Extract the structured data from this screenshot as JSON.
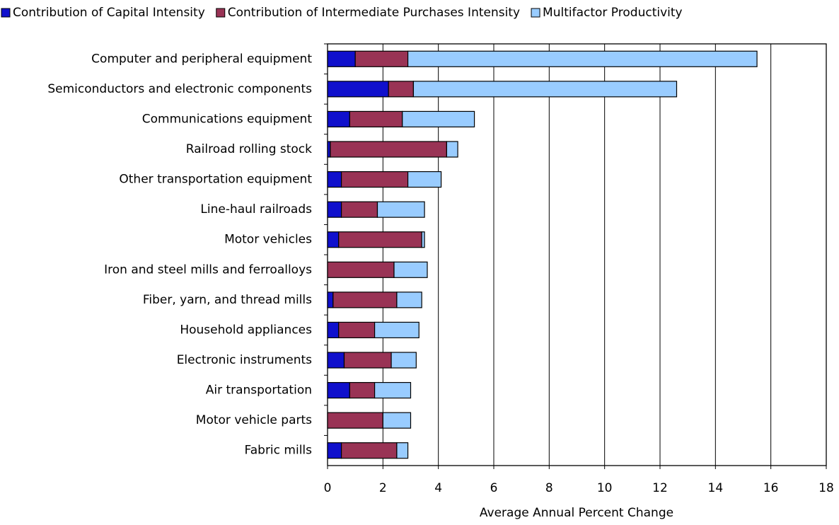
{
  "chart_data": {
    "type": "stacked-bar-horizontal",
    "x_label": "Average Annual Percent Change",
    "categories": [
      "Computer and peripheral equipment",
      "Semiconductors and electronic components",
      "Communications equipment",
      "Railroad rolling stock",
      "Other transportation equipment",
      "Line-haul railroads",
      "Motor vehicles",
      "Iron and steel mills and ferroalloys",
      "Fiber, yarn, and thread mills",
      "Household appliances",
      "Electronic instruments",
      "Air transportation",
      "Motor vehicle parts",
      "Fabric mills"
    ],
    "series": [
      {
        "name": "Contribution of Capital Intensity",
        "color": "#1010cc",
        "values": [
          1.0,
          2.2,
          0.8,
          0.1,
          0.5,
          0.5,
          0.4,
          0,
          0.2,
          0.4,
          0.6,
          0.8,
          0,
          0.5
        ]
      },
      {
        "name": "Contribution of Intermediate Purchases Intensity",
        "color": "#993355",
        "values": [
          1.9,
          0.9,
          1.9,
          4.2,
          2.4,
          1.3,
          3.0,
          2.4,
          2.3,
          1.3,
          1.7,
          0.9,
          2.0,
          2.0
        ]
      },
      {
        "name": "Multifactor Productivity",
        "color": "#99ccff",
        "values": [
          12.6,
          9.5,
          2.6,
          0.4,
          1.2,
          1.7,
          0.1,
          1.2,
          0.9,
          1.6,
          0.9,
          1.3,
          1.0,
          0.4
        ]
      }
    ],
    "xlim": [
      0,
      18
    ],
    "xticks": [
      0,
      2,
      4,
      6,
      8,
      10,
      12,
      14,
      16,
      18
    ],
    "grid": true,
    "legend": "top"
  }
}
